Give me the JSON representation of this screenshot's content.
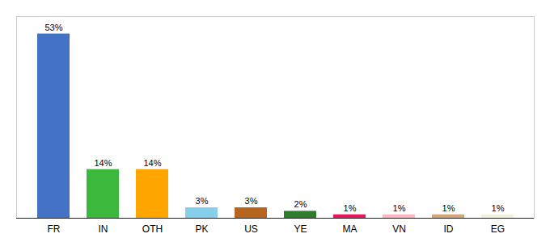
{
  "chart_data": {
    "type": "bar",
    "categories": [
      "FR",
      "IN",
      "OTH",
      "PK",
      "US",
      "YE",
      "MA",
      "VN",
      "ID",
      "EG"
    ],
    "values": [
      53,
      14,
      14,
      3,
      3,
      2,
      1,
      1,
      1,
      1
    ],
    "value_labels": [
      "53%",
      "14%",
      "14%",
      "3%",
      "3%",
      "2%",
      "1%",
      "1%",
      "1%",
      "1%"
    ],
    "data_labels": true,
    "colors": [
      "#4472c4",
      "#3cb83c",
      "#ffa500",
      "#87ceeb",
      "#b5651d",
      "#2e7d2e",
      "#e8175d",
      "#ffb6c1",
      "#d2a679",
      "#f5f0dc"
    ],
    "ylim": [
      0,
      58
    ],
    "grid": false,
    "tick_labels": "x"
  }
}
